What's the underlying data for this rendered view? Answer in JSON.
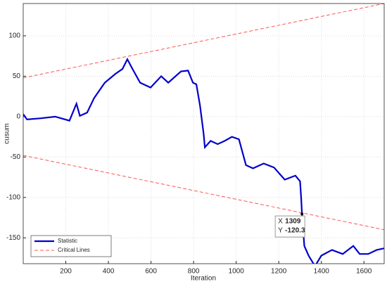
{
  "chart_data": {
    "type": "line",
    "xlabel": "Iteration",
    "ylabel": "cusum",
    "xlim": [
      0,
      1695
    ],
    "ylim": [
      -182,
      140
    ],
    "xticks": [
      200,
      400,
      600,
      800,
      1000,
      1200,
      1400,
      1600
    ],
    "yticks": [
      -150,
      -100,
      -50,
      0,
      50,
      100
    ],
    "grid": true,
    "legend": "lower left",
    "series": [
      {
        "name": "Statistic",
        "color": "#0000cc",
        "x": [
          0,
          18,
          84,
          150,
          217,
          250,
          266,
          300,
          333,
          383,
          433,
          466,
          489,
          509,
          549,
          598,
          648,
          681,
          741,
          774,
          797,
          813,
          830,
          847,
          853,
          880,
          913,
          946,
          980,
          1013,
          1046,
          1079,
          1129,
          1178,
          1228,
          1278,
          1300,
          1305,
          1309,
          1320,
          1340,
          1370,
          1400,
          1450,
          1500,
          1550,
          1580,
          1620,
          1660,
          1695
        ],
        "values": [
          3,
          -3.5,
          -2,
          0,
          -5,
          16,
          1,
          5,
          23,
          42,
          53,
          59,
          71,
          61,
          42,
          36,
          50,
          42,
          56,
          57,
          42,
          40,
          14,
          -21,
          -38,
          -30,
          -34,
          -30,
          -25,
          -28,
          -60,
          -64,
          -58,
          -63,
          -78,
          -73,
          -80,
          -100,
          -120.3,
          -160,
          -172,
          -185,
          -172,
          -165,
          -170,
          -160,
          -170,
          -170,
          -165,
          -163
        ]
      },
      {
        "name": "Critical Lines",
        "color": "#ff5555",
        "dashed": true,
        "x": [
          0,
          1695
        ],
        "values": [
          48,
          140
        ]
      },
      {
        "name": null,
        "color": "#ff5555",
        "dashed": true,
        "x": [
          0,
          1695
        ],
        "values": [
          -48,
          -140
        ]
      }
    ],
    "datatip": {
      "x_label": "X",
      "x": 1309,
      "y_label": "Y",
      "y": -120.3
    }
  }
}
